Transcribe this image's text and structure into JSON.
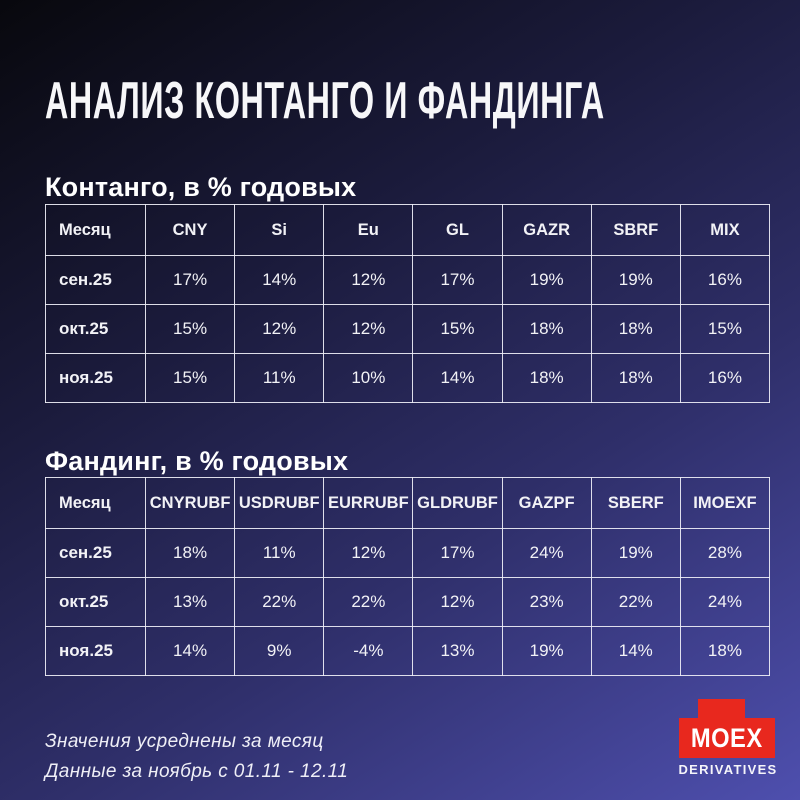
{
  "title": "АНАЛИЗ КОНТАНГО И ФАНДИНГА",
  "footer": {
    "note1": "Значения усреднены за месяц",
    "note2": "Данные за ноябрь с 01.11 - 12.11"
  },
  "logo": {
    "brand": "MOEX",
    "sub": "DERIVATIVES",
    "accent_color": "#e8281e"
  },
  "colors": {
    "background_gradient_start": "#08080d",
    "background_gradient_end": "#4e4fae",
    "table_border": "#eeeef6",
    "text": "#f4f4f8",
    "logo_red": "#e8281e"
  },
  "chart_data": [
    {
      "type": "table",
      "title": "Контанго, в % годовых",
      "columns": [
        "Месяц",
        "CNY",
        "Si",
        "Eu",
        "GL",
        "GAZR",
        "SBRF",
        "MIX"
      ],
      "rows": [
        [
          "сен.25",
          "17%",
          "14%",
          "12%",
          "17%",
          "19%",
          "19%",
          "16%"
        ],
        [
          "окт.25",
          "15%",
          "12%",
          "12%",
          "15%",
          "18%",
          "18%",
          "15%"
        ],
        [
          "ноя.25",
          "15%",
          "11%",
          "10%",
          "14%",
          "18%",
          "18%",
          "16%"
        ]
      ]
    },
    {
      "type": "table",
      "title": "Фандинг, в % годовых",
      "columns": [
        "Месяц",
        "CNYRUBF",
        "USDRUBF",
        "EURRUBF",
        "GLDRUBF",
        "GAZPF",
        "SBERF",
        "IMOEXF"
      ],
      "rows": [
        [
          "сен.25",
          "18%",
          "11%",
          "12%",
          "17%",
          "24%",
          "19%",
          "28%"
        ],
        [
          "окт.25",
          "13%",
          "22%",
          "22%",
          "12%",
          "23%",
          "22%",
          "24%"
        ],
        [
          "ноя.25",
          "14%",
          "9%",
          "-4%",
          "13%",
          "19%",
          "14%",
          "18%"
        ]
      ]
    }
  ]
}
